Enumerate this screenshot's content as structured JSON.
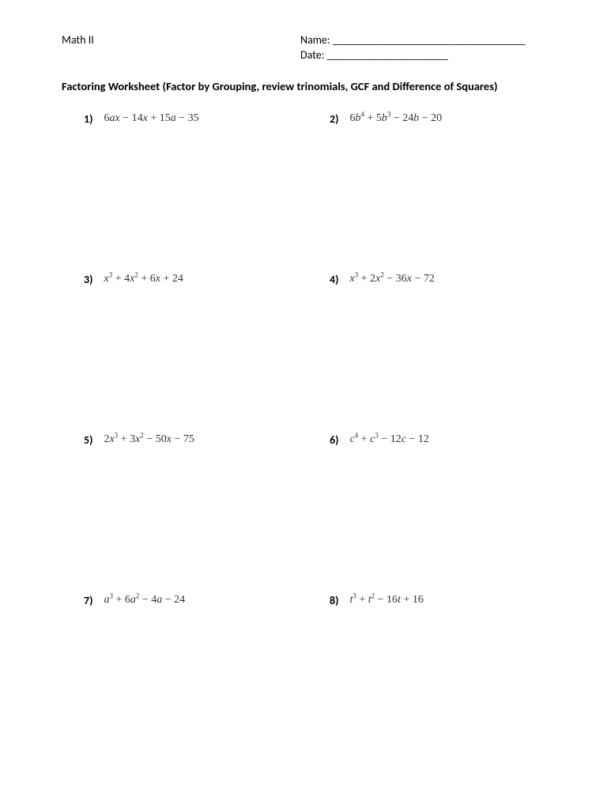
{
  "header": {
    "course": "Math II",
    "name_label": "Name:",
    "name_blank": "___________________________________",
    "date_label": "Date:",
    "date_blank": "______________________"
  },
  "title": "Factoring Worksheet (Factor by Grouping, review trinomials, GCF and Difference of Squares)",
  "problems": [
    {
      "num": "1)",
      "expr_html": "6<span class='ital'>ax</span> − 14<span class='ital'>x</span> + 15<span class='ital'>a</span> − 35"
    },
    {
      "num": "2)",
      "expr_html": "6<span class='ital'>b</span><sup>4</sup> + 5<span class='ital'>b</span><sup>3</sup> − 24<span class='ital'>b</span> − 20"
    },
    {
      "num": "3)",
      "expr_html": "<span class='ital'>x</span><sup>3</sup> + 4<span class='ital'>x</span><sup>2</sup> + 6<span class='ital'>x</span> + 24"
    },
    {
      "num": "4)",
      "expr_html": "<span class='ital'>x</span><sup>3</sup> + 2<span class='ital'>x</span><sup>2</sup> − 36<span class='ital'>x</span> − 72"
    },
    {
      "num": "5)",
      "expr_html": "2<span class='ital'>x</span><sup>3</sup> + 3<span class='ital'>x</span><sup>2</sup> − 50<span class='ital'>x</span> − 75"
    },
    {
      "num": "6)",
      "expr_html": "<span class='ital'>c</span><sup>4</sup> + <span class='ital'>c</span><sup>3</sup> − 12<span class='ital'>c</span> − 12"
    },
    {
      "num": "7)",
      "expr_html": "<span class='ital'>a</span><sup>3</sup> + 6<span class='ital'>a</span><sup>2</sup> − 4<span class='ital'>a</span> − 24"
    },
    {
      "num": "8)",
      "expr_html": "<span class='ital'>t</span><sup>3</sup> + <span class='ital'>t</span><sup>2</sup> − 16<span class='ital'>t</span> + 16"
    }
  ]
}
